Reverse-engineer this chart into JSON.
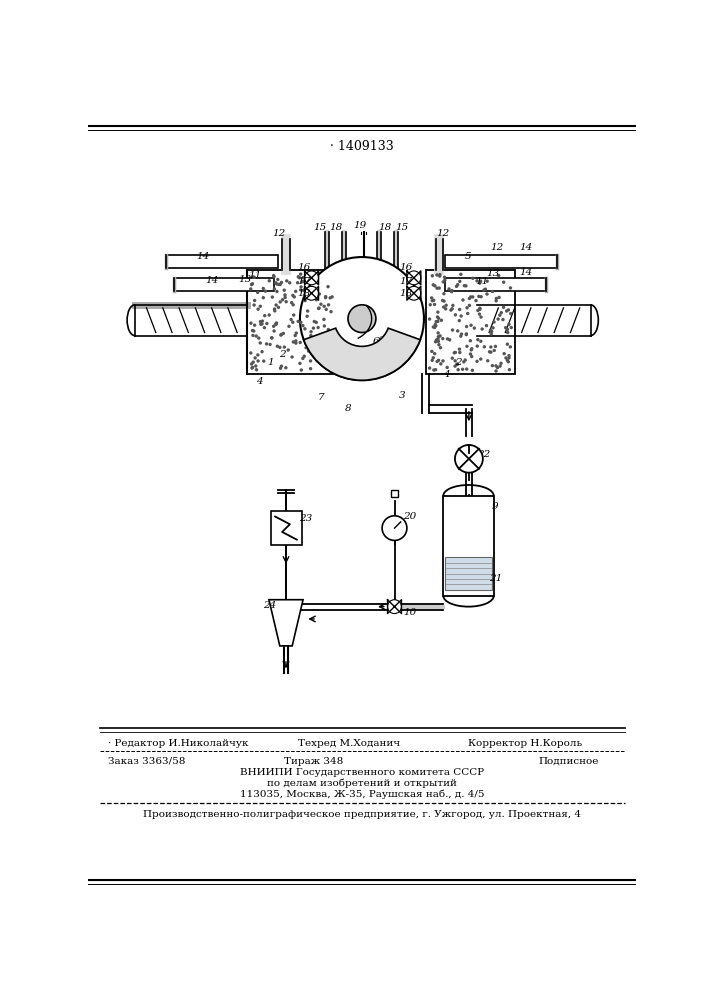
{
  "title": "· 1409133",
  "bg_color": "#ffffff",
  "line_color": "#000000",
  "editor_line": "· Редактор И.Николайчук",
  "tekhred_line": "Техред М.Ходанич",
  "corrector_line": "Корректор Н.Король",
  "order_line": "Заказ 3363/58",
  "tirazh_line": "Тираж 348",
  "podpisnoe_line": "Подписное",
  "vniiipi_line": "ВНИИПИ Государственного комитета СССР",
  "po_delam_line": "по делам изобретений и открытий",
  "address_line": "113035, Москва, Ж-35, Раушская наб., д. 4/5",
  "proizv_line": "Производственно-полиграфическое предприятие, г. Ужгород, ул. Проектная, 4"
}
